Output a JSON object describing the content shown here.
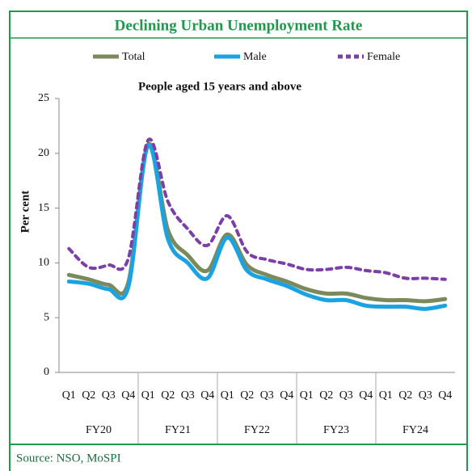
{
  "chart_data": {
    "type": "line",
    "title": "Declining Urban Unemployment Rate",
    "subtitle": "People aged 15 years and above",
    "y_label": "Per cent",
    "source": "Source: NSO, MoSPI",
    "categories": [
      "Q1",
      "Q2",
      "Q3",
      "Q4",
      "Q1",
      "Q2",
      "Q3",
      "Q4",
      "Q1",
      "Q2",
      "Q3",
      "Q4",
      "Q1",
      "Q2",
      "Q3",
      "Q4",
      "Q1",
      "Q2",
      "Q3",
      "Q4"
    ],
    "groups": [
      "FY20",
      "FY21",
      "FY22",
      "FY23",
      "FY24"
    ],
    "series": [
      {
        "name": "Total",
        "color": "#7b8a5c",
        "values": [
          8.9,
          8.5,
          8.0,
          8.2,
          20.8,
          13.0,
          10.7,
          9.3,
          12.6,
          9.8,
          8.9,
          8.3,
          7.6,
          7.2,
          7.2,
          6.8,
          6.6,
          6.6,
          6.5,
          6.7
        ]
      },
      {
        "name": "Male",
        "color": "#1aa3e0",
        "values": [
          8.3,
          8.1,
          7.6,
          7.8,
          20.7,
          12.2,
          10.0,
          8.6,
          12.3,
          9.3,
          8.5,
          7.9,
          7.1,
          6.6,
          6.6,
          6.1,
          6.0,
          6.0,
          5.8,
          6.1
        ]
      },
      {
        "name": "Female",
        "color": "#7b3fa6",
        "dashed": true,
        "values": [
          11.3,
          9.6,
          9.8,
          10.4,
          21.2,
          15.6,
          13.1,
          11.6,
          14.3,
          11.0,
          10.3,
          9.9,
          9.4,
          9.4,
          9.6,
          9.3,
          9.1,
          8.6,
          8.6,
          8.5
        ]
      }
    ],
    "ylim": [
      0,
      25
    ],
    "yticks": [
      0,
      5,
      10,
      15,
      20,
      25
    ],
    "grid": false
  }
}
